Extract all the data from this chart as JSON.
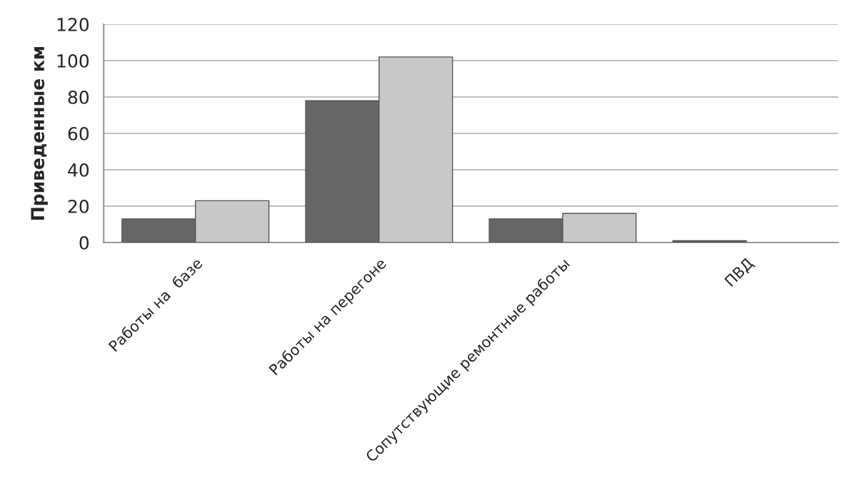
{
  "chart_data": {
    "type": "bar",
    "ylabel": "Приведенные км",
    "categories": [
      "Работы на  базе",
      "Работы на перегоне",
      "Сопутствующие ремонтные работы",
      "ПВД"
    ],
    "series": [
      {
        "color": "#666666",
        "values": [
          13,
          78,
          13,
          1
        ]
      },
      {
        "color": "#c8c8c8",
        "values": [
          23,
          102,
          16,
          null
        ]
      }
    ],
    "ylim": [
      0,
      120
    ],
    "yticks": [
      0,
      20,
      40,
      60,
      80,
      100,
      120
    ],
    "grid": "y"
  }
}
